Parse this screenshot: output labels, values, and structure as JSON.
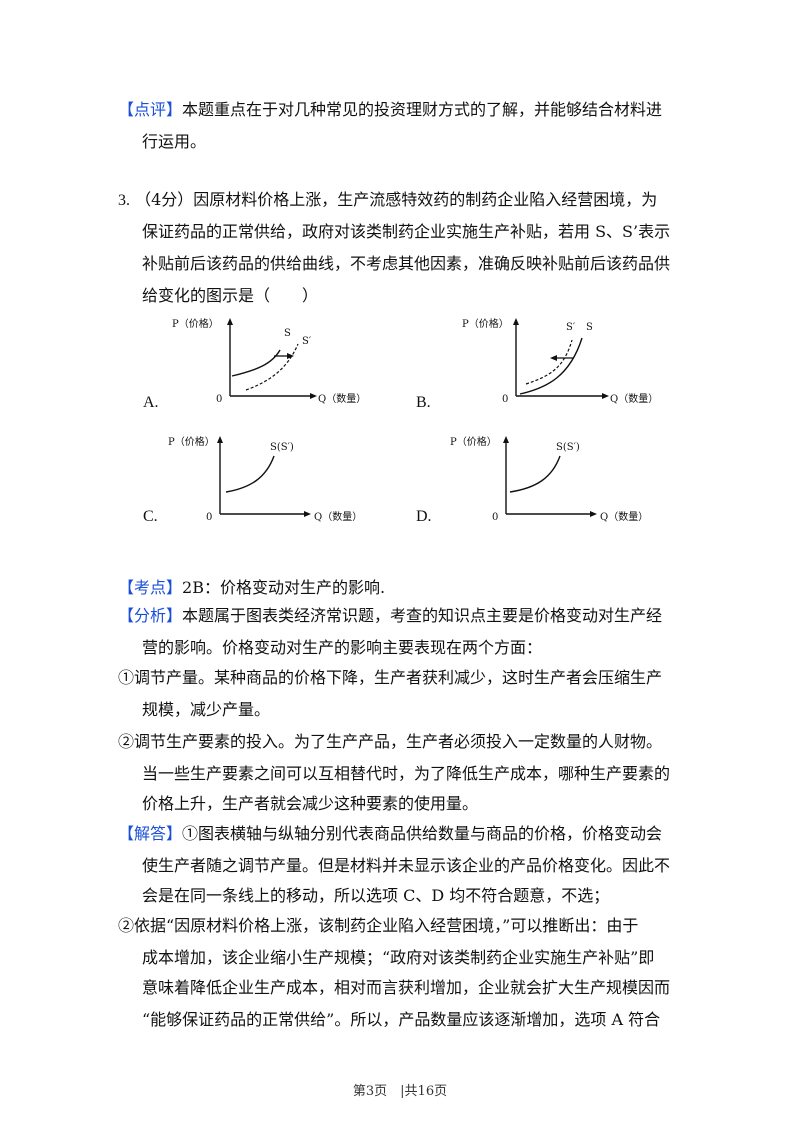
{
  "comment_block": {
    "tag": "【点评】",
    "line1": "本题重点在于对几种常见的投资理财方式的了解，并能够结合材料进",
    "line2": "行运用。"
  },
  "question": {
    "number": "3.",
    "line1": "（4分）因原材料价格上涨，生产流感特效药的制药企业陷入经营困境，为",
    "line2": "保证药品的正常供给，政府对该类制药企业实施生产补贴，若用 S、S’表示",
    "line3": "补贴前后该药品的供给曲线，不考虑其他因素，准确反映补贴前后该药品供",
    "line4": "给变化的图示是（　　）"
  },
  "graphs": {
    "y_axis_label": "P（价格）",
    "x_axis_label": "Q（数量）",
    "origin": "0",
    "A": {
      "option": "A.",
      "curve1": "S",
      "curve2": "S′"
    },
    "B": {
      "option": "B.",
      "curve1": "S′",
      "curve2": "S"
    },
    "C": {
      "option": "C.",
      "curve1": "S(S′)"
    },
    "D": {
      "option": "D.",
      "curve1": "S(S′)"
    }
  },
  "kaodian": {
    "tag": "【考点】",
    "text": "2B：价格变动对生产的影响."
  },
  "fenxi": {
    "tag": "【分析】",
    "line1": "本题属于图表类经济常识题，考查的知识点主要是价格变动对生产经",
    "line2": "营的影响。价格变动对生产的影响主要表现在两个方面：",
    "p1_line1": "①调节产量。某种商品的价格下降，生产者获利减少，这时生产者会压缩生产",
    "p1_line2": "规模，减少产量。",
    "p2_line1": "②调节生产要素的投入。为了生产产品，生产者必须投入一定数量的人财物。",
    "p2_line2": "当一些生产要素之间可以互相替代时，为了降低生产成本，哪种生产要素的",
    "p2_line3": "价格上升，生产者就会减少这种要素的使用量。"
  },
  "jieda": {
    "tag": "【解答】",
    "line1": "①图表横轴与纵轴分别代表商品供给数量与商品的价格，价格变动会",
    "line2": "使生产者随之调节产量。但是材料并未显示该企业的产品价格变化。因此不",
    "line3": "会是在同一条线上的移动，所以选项 C、D 均不符合题意，不选；",
    "p2_line1": "②依据“因原材料价格上涨，该制药企业陷入经营困境，”可以推断出：由于",
    "p2_line2": "成本增加，该企业缩小生产规模；“政府对该类制药企业实施生产补贴”即",
    "p2_line3": "意味着降低企业生产成本，相对而言获利增加，企业就会扩大生产规模因而",
    "p2_line4": "“能够保证药品的正常供给”。所以，产品数量应该逐渐增加，选项 A 符合"
  },
  "footer": "第3页　|共16页"
}
